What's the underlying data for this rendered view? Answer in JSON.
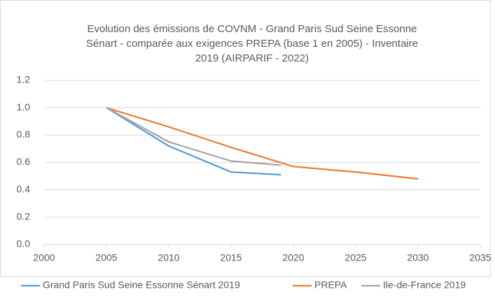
{
  "chart_data": {
    "type": "line",
    "title": [
      "Evolution des émissions de COVNM - Grand Paris Sud Seine Essonne",
      "Sénart -  comparée aux exigences PREPA (base 1 en 2005) - Inventaire",
      "2019 (AIRPARIF - 2022)"
    ],
    "series": [
      {
        "name": "Grand Paris Sud Seine Essonne Sénart 2019",
        "color": "#5b9bd5",
        "x": [
          2005,
          2010,
          2015,
          2019
        ],
        "values": [
          1.0,
          0.72,
          0.53,
          0.51
        ]
      },
      {
        "name": "PREPA",
        "color": "#ed7d31",
        "x": [
          2005,
          2010,
          2015,
          2020,
          2025,
          2030
        ],
        "values": [
          1.0,
          0.86,
          0.71,
          0.57,
          0.53,
          0.48
        ]
      },
      {
        "name": "Ile-de-France 2019",
        "color": "#a5a5a5",
        "x": [
          2005,
          2010,
          2015,
          2019
        ],
        "values": [
          1.0,
          0.75,
          0.61,
          0.58
        ]
      }
    ],
    "xlim": [
      2000,
      2035
    ],
    "xticks": [
      2000,
      2005,
      2010,
      2015,
      2020,
      2025,
      2030,
      2035
    ],
    "ylim": [
      0,
      1.2
    ],
    "yticks": [
      {
        "value": 0,
        "label": "0.0"
      },
      0.2,
      0.4,
      0.6,
      0.8,
      {
        "value": 1,
        "label": "1.0"
      },
      1.2
    ],
    "grid": true,
    "legend": "bottom"
  }
}
